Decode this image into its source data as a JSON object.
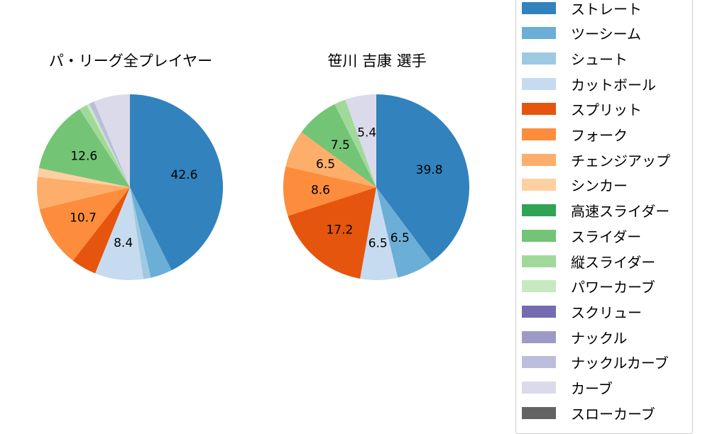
{
  "legend": {
    "items": [
      {
        "label": "ストレート",
        "color": "#3182bd"
      },
      {
        "label": "ツーシーム",
        "color": "#6baed6"
      },
      {
        "label": "シュート",
        "color": "#9ecae1"
      },
      {
        "label": "カットボール",
        "color": "#c6dbef"
      },
      {
        "label": "スプリット",
        "color": "#e6550d"
      },
      {
        "label": "フォーク",
        "color": "#fd8d3c"
      },
      {
        "label": "チェンジアップ",
        "color": "#fdae6b"
      },
      {
        "label": "シンカー",
        "color": "#fdd0a2"
      },
      {
        "label": "高速スライダー",
        "color": "#31a354"
      },
      {
        "label": "スライダー",
        "color": "#74c476"
      },
      {
        "label": "縦スライダー",
        "color": "#a1d99b"
      },
      {
        "label": "パワーカーブ",
        "color": "#c7e9c0"
      },
      {
        "label": "スクリュー",
        "color": "#756bb1"
      },
      {
        "label": "ナックル",
        "color": "#9e9ac8"
      },
      {
        "label": "ナックルカーブ",
        "color": "#bcbddc"
      },
      {
        "label": "カーブ",
        "color": "#dadaeb"
      },
      {
        "label": "スローカーブ",
        "color": "#636363"
      }
    ]
  },
  "chart_data": [
    {
      "type": "pie",
      "title": "パ・リーグ全プレイヤー",
      "start_angle": 90,
      "direction": "clockwise",
      "categories": [
        "ストレート",
        "ツーシーム",
        "シュート",
        "カットボール",
        "スプリット",
        "フォーク",
        "チェンジアップ",
        "シンカー",
        "スライダー",
        "縦スライダー",
        "パワーカーブ",
        "ナックルカーブ",
        "カーブ"
      ],
      "values": [
        42.6,
        3.8,
        1.3,
        8.4,
        4.4,
        10.7,
        5.6,
        1.5,
        12.6,
        1.4,
        0.5,
        0.9,
        6.3
      ],
      "colors": [
        "#3182bd",
        "#6baed6",
        "#9ecae1",
        "#c6dbef",
        "#e6550d",
        "#fd8d3c",
        "#fdae6b",
        "#fdd0a2",
        "#74c476",
        "#a1d99b",
        "#c7e9c0",
        "#bcbddc",
        "#dadaeb"
      ],
      "labels_shown": [
        "42.6",
        "",
        "",
        "8.4",
        "",
        "10.7",
        "",
        "",
        "12.6",
        "",
        "",
        "",
        ""
      ],
      "center": [
        183,
        264
      ],
      "radius": 131
    },
    {
      "type": "pie",
      "title": "笹川 吉康  選手",
      "start_angle": 90,
      "direction": "clockwise",
      "categories": [
        "ストレート",
        "ツーシーム",
        "カットボール",
        "スプリット",
        "フォーク",
        "チェンジアップ",
        "スライダー",
        "縦スライダー",
        "カーブ"
      ],
      "values": [
        39.8,
        6.5,
        6.5,
        17.2,
        8.6,
        6.5,
        7.5,
        2.0,
        5.4
      ],
      "colors": [
        "#3182bd",
        "#6baed6",
        "#c6dbef",
        "#e6550d",
        "#fd8d3c",
        "#fdae6b",
        "#74c476",
        "#a1d99b",
        "#dadaeb"
      ],
      "labels_shown": [
        "39.8",
        "6.5",
        "6.5",
        "17.2",
        "8.6",
        "6.5",
        "7.5",
        "",
        "5.4"
      ],
      "center": [
        530,
        264
      ],
      "radius": 131
    }
  ]
}
